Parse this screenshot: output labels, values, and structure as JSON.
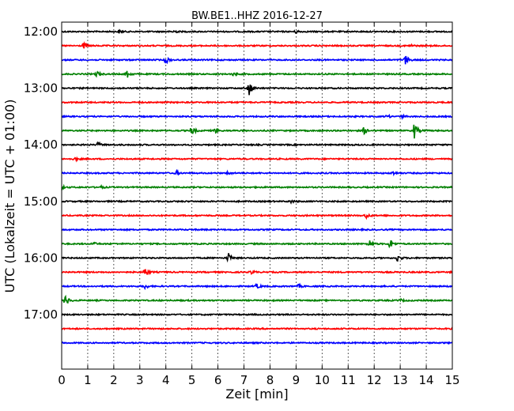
{
  "chart_data": {
    "type": "line",
    "title": "BW.BE1..HHZ 2016-12-27",
    "xlabel": "Zeit  [min]",
    "ylabel": "UTC (Lokalzeit = UTC + 01:00)",
    "xlim": [
      0,
      15
    ],
    "x_ticks": [
      "0",
      "1",
      "2",
      "3",
      "4",
      "5",
      "6",
      "7",
      "8",
      "9",
      "10",
      "11",
      "12",
      "13",
      "14",
      "15"
    ],
    "y_ticks": [
      "12:00",
      "13:00",
      "14:00",
      "15:00",
      "16:00",
      "17:00"
    ],
    "grid": "vertical-dotted",
    "trace_colors": [
      "#000000",
      "#ff0000",
      "#0000ff",
      "#008000"
    ],
    "traces": [
      {
        "start": "12:00",
        "events": [
          {
            "t": 2.2,
            "a": 0.3
          },
          {
            "t": 4.3,
            "a": 0.35
          },
          {
            "t": 9.0,
            "a": 0.3
          }
        ]
      },
      {
        "start": "12:15",
        "events": [
          {
            "t": 0.85,
            "a": 0.55
          },
          {
            "t": 13.4,
            "a": 0.25
          }
        ]
      },
      {
        "start": "12:30",
        "events": [
          {
            "t": 4.0,
            "a": 0.8
          },
          {
            "t": 13.2,
            "a": 1.0
          }
        ]
      },
      {
        "start": "12:45",
        "events": [
          {
            "t": 1.35,
            "a": 0.55
          },
          {
            "t": 2.5,
            "a": 0.9
          },
          {
            "t": 6.6,
            "a": 0.3
          }
        ]
      },
      {
        "start": "13:00",
        "events": [
          {
            "t": 7.2,
            "a": 1.6
          }
        ]
      },
      {
        "start": "13:15",
        "events": []
      },
      {
        "start": "13:30",
        "events": [
          {
            "t": 12.5,
            "a": 0.3
          },
          {
            "t": 13.1,
            "a": 0.25
          }
        ]
      },
      {
        "start": "13:45",
        "events": [
          {
            "t": 5.0,
            "a": 1.0
          },
          {
            "t": 5.9,
            "a": 0.6
          },
          {
            "t": 11.6,
            "a": 0.7
          },
          {
            "t": 13.55,
            "a": 1.7
          }
        ]
      },
      {
        "start": "14:00",
        "events": [
          {
            "t": 1.4,
            "a": 0.45
          }
        ]
      },
      {
        "start": "14:15",
        "events": [
          {
            "t": 0.5,
            "a": 0.35
          }
        ]
      },
      {
        "start": "14:30",
        "events": [
          {
            "t": 4.4,
            "a": 0.4
          },
          {
            "t": 6.4,
            "a": 0.35
          },
          {
            "t": 12.7,
            "a": 0.4
          }
        ]
      },
      {
        "start": "14:45",
        "events": [
          {
            "t": 0.0,
            "a": 0.3
          },
          {
            "t": 1.5,
            "a": 0.25
          }
        ]
      },
      {
        "start": "15:00",
        "events": [
          {
            "t": 8.8,
            "a": 0.3
          }
        ]
      },
      {
        "start": "15:15",
        "events": [
          {
            "t": 11.7,
            "a": 0.55
          }
        ]
      },
      {
        "start": "15:30",
        "events": []
      },
      {
        "start": "15:45",
        "events": [
          {
            "t": 1.2,
            "a": 0.35
          },
          {
            "t": 11.8,
            "a": 1.0
          },
          {
            "t": 12.6,
            "a": 1.0
          }
        ]
      },
      {
        "start": "16:00",
        "events": [
          {
            "t": 6.4,
            "a": 1.0
          },
          {
            "t": 12.9,
            "a": 0.7
          }
        ]
      },
      {
        "start": "16:15",
        "events": [
          {
            "t": 3.2,
            "a": 1.0
          },
          {
            "t": 7.3,
            "a": 0.35
          }
        ]
      },
      {
        "start": "16:30",
        "events": [
          {
            "t": 3.2,
            "a": 0.45
          },
          {
            "t": 7.5,
            "a": 0.5
          },
          {
            "t": 9.1,
            "a": 0.3
          }
        ]
      },
      {
        "start": "16:45",
        "events": [
          {
            "t": 0.15,
            "a": 1.1
          },
          {
            "t": 13.0,
            "a": 0.25
          }
        ]
      },
      {
        "start": "17:00",
        "events": []
      },
      {
        "start": "17:15",
        "events": []
      },
      {
        "start": "17:30",
        "events": []
      }
    ]
  }
}
